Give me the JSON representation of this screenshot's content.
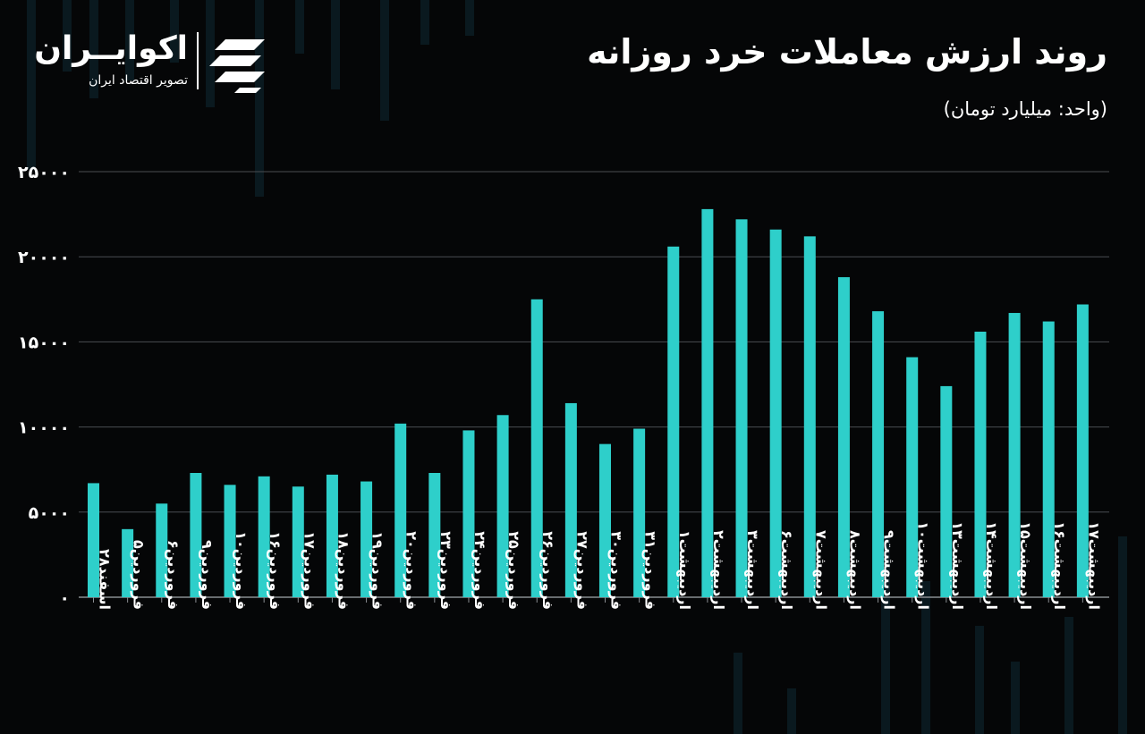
{
  "header": {
    "title": "روند ارزش معاملات خرد روزانه",
    "unit": "(واحد: میلیارد تومان)"
  },
  "logo": {
    "name": "اکوایــران",
    "tagline": "تصویر اقتصاد ایران",
    "icon": "ecoiran-logo-icon"
  },
  "colors": {
    "bar": "#2ecfca",
    "background": "#050607",
    "grid": "#4a4d52",
    "text": "#ffffff"
  },
  "chart_data": {
    "type": "bar",
    "ylim": [
      0,
      25000
    ],
    "yticks": [
      0,
      5000,
      10000,
      15000,
      20000,
      25000
    ],
    "ytick_labels": [
      "۰",
      "۵۰۰۰",
      "۱۰۰۰۰",
      "۱۵۰۰۰",
      "۲۰۰۰۰",
      "۲۵۰۰۰"
    ],
    "grid": true,
    "categories": [
      "اسفند۲۸",
      "فروردین۵",
      "فروردین۶",
      "فروردین۹",
      "فروردین۱۰",
      "فروردین۱۶",
      "فروردین۱۷",
      "فروردین۱۸",
      "فروردین۱۹",
      "فروردین۲۰",
      "فروردین۲۳",
      "فروردین۲۴",
      "فروردین۲۵",
      "فروردین۲۶",
      "فروردین۲۷",
      "فروردین۳۰",
      "فروردین۳۱",
      "اردیبهشت۱",
      "اردیبهشت۲",
      "اردیبهشت۳",
      "اردیبهشت۶",
      "اردیبهشت۷",
      "اردیبهشت۸",
      "اردیبهشت۹",
      "اردیبهشت۱۰",
      "اردیبهشت۱۳",
      "اردیبهشت۱۴",
      "اردیبهشت۱۵",
      "اردیبهشت۱۶",
      "اردیبهشت۱۷"
    ],
    "values": [
      6700,
      4000,
      5500,
      7300,
      6600,
      7100,
      6500,
      7200,
      6800,
      10200,
      7300,
      9800,
      10700,
      17500,
      11400,
      9000,
      9900,
      20600,
      22800,
      22200,
      21600,
      21200,
      18800,
      16800,
      14100,
      12400,
      15600,
      16700,
      16200,
      17200
    ]
  }
}
